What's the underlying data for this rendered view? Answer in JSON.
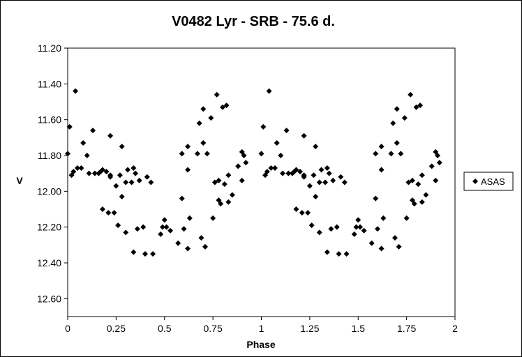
{
  "chart_data": {
    "type": "scatter",
    "title": "V0482 Lyr - SRB - 75.6 d.",
    "xlabel": "Phase",
    "ylabel": "V",
    "xlim": [
      0,
      2
    ],
    "ylim": [
      11.2,
      12.7
    ],
    "y_inverted": true,
    "grid": false,
    "legend_position": "right",
    "x_ticks": [
      "0",
      "0.25",
      "0.5",
      "0.75",
      "1",
      "1.25",
      "1.5",
      "1.75",
      "2"
    ],
    "x_tick_values": [
      0,
      0.25,
      0.5,
      0.75,
      1,
      1.25,
      1.5,
      1.75,
      2
    ],
    "y_ticks": [
      "11.20",
      "11.40",
      "11.60",
      "11.80",
      "12.00",
      "12.20",
      "12.40",
      "12.60"
    ],
    "y_tick_values": [
      11.2,
      11.4,
      11.6,
      11.8,
      12.0,
      12.2,
      12.4,
      12.6
    ],
    "series": [
      {
        "name": "ASAS",
        "marker": "diamond",
        "color": "#000000",
        "points": [
          [
            0.0,
            11.79
          ],
          [
            0.01,
            11.64
          ],
          [
            0.02,
            11.91
          ],
          [
            0.03,
            11.89
          ],
          [
            0.04,
            11.44
          ],
          [
            0.05,
            11.87
          ],
          [
            0.07,
            11.87
          ],
          [
            0.08,
            11.73
          ],
          [
            0.1,
            11.8
          ],
          [
            0.11,
            11.9
          ],
          [
            0.13,
            11.66
          ],
          [
            0.14,
            11.9
          ],
          [
            0.16,
            11.9
          ],
          [
            0.17,
            11.89
          ],
          [
            0.18,
            11.88
          ],
          [
            0.18,
            12.1
          ],
          [
            0.2,
            11.89
          ],
          [
            0.21,
            12.12
          ],
          [
            0.22,
            11.91
          ],
          [
            0.22,
            11.92
          ],
          [
            0.22,
            11.69
          ],
          [
            0.24,
            12.12
          ],
          [
            0.25,
            11.97
          ],
          [
            0.26,
            12.19
          ],
          [
            0.27,
            11.91
          ],
          [
            0.28,
            12.03
          ],
          [
            0.28,
            11.75
          ],
          [
            0.3,
            11.95
          ],
          [
            0.3,
            12.23
          ],
          [
            0.31,
            11.88
          ],
          [
            0.33,
            11.95
          ],
          [
            0.34,
            11.87
          ],
          [
            0.34,
            12.34
          ],
          [
            0.35,
            11.9
          ],
          [
            0.36,
            12.21
          ],
          [
            0.37,
            11.94
          ],
          [
            0.39,
            12.2
          ],
          [
            0.4,
            12.35
          ],
          [
            0.41,
            11.92
          ],
          [
            0.43,
            11.95
          ],
          [
            0.44,
            12.35
          ],
          [
            0.48,
            12.24
          ],
          [
            0.49,
            12.2
          ],
          [
            0.5,
            12.16
          ],
          [
            0.51,
            12.2
          ],
          [
            0.53,
            12.22
          ],
          [
            0.57,
            12.29
          ],
          [
            0.59,
            11.79
          ],
          [
            0.59,
            12.04
          ],
          [
            0.6,
            12.21
          ],
          [
            0.62,
            12.32
          ],
          [
            0.62,
            11.88
          ],
          [
            0.62,
            11.75
          ],
          [
            0.63,
            12.15
          ],
          [
            0.67,
            11.79
          ],
          [
            0.68,
            11.62
          ],
          [
            0.69,
            12.26
          ],
          [
            0.7,
            11.73
          ],
          [
            0.7,
            11.54
          ],
          [
            0.71,
            12.31
          ],
          [
            0.72,
            11.79
          ],
          [
            0.74,
            11.59
          ],
          [
            0.75,
            12.15
          ],
          [
            0.76,
            11.95
          ],
          [
            0.77,
            11.46
          ],
          [
            0.78,
            11.94
          ],
          [
            0.78,
            12.05
          ],
          [
            0.79,
            12.07
          ],
          [
            0.8,
            11.53
          ],
          [
            0.81,
            11.96
          ],
          [
            0.82,
            11.52
          ],
          [
            0.83,
            11.91
          ],
          [
            0.83,
            12.06
          ],
          [
            0.85,
            12.02
          ],
          [
            0.88,
            11.86
          ],
          [
            0.9,
            11.94
          ],
          [
            0.9,
            11.78
          ],
          [
            0.91,
            11.8
          ],
          [
            0.92,
            11.84
          ]
        ]
      }
    ]
  }
}
